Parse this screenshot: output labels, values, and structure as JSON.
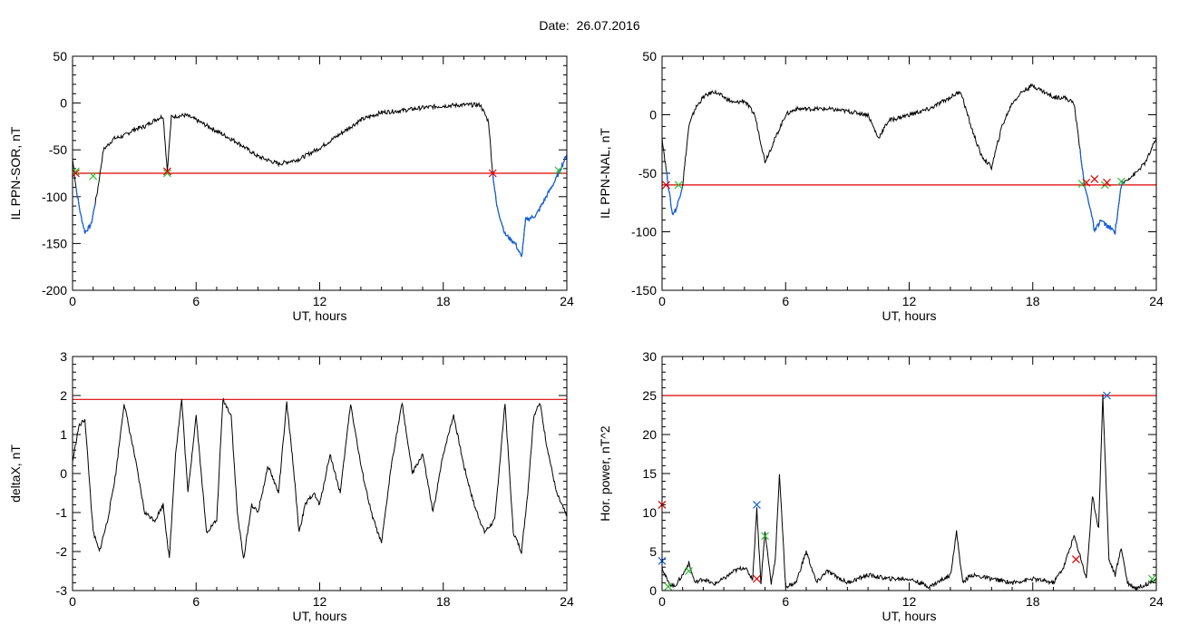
{
  "figure": {
    "title": "Date:  26.07.2016"
  },
  "colors": {
    "trace": "#000000",
    "threshold": "#e00000",
    "segment": "#1060e0",
    "marker_start": "#30c030",
    "marker_end": "#e00000",
    "marker_peak": "#1060e0"
  },
  "chart_data": [
    {
      "id": "sor",
      "type": "line",
      "ylabel": "IL PPN-SOR, nT",
      "xlabel": "UT, hours",
      "xlim": [
        0,
        24
      ],
      "ylim": [
        -200,
        50
      ],
      "xticks": [
        0,
        6,
        12,
        18,
        24
      ],
      "yticks": [
        -200,
        -150,
        -100,
        -50,
        0,
        50
      ],
      "threshold": -75,
      "series": [
        {
          "x": [
            0,
            0.2,
            0.4,
            0.6,
            0.9,
            1.2,
            1.5,
            2,
            2.5,
            3,
            3.5,
            4,
            4.4,
            4.6,
            4.8,
            5,
            5.5,
            6,
            7,
            8,
            9,
            10,
            11,
            12,
            13,
            14,
            15,
            16,
            17,
            18,
            19,
            19.8,
            20.2,
            20.4,
            20.6,
            21,
            21.5,
            21.8,
            22,
            22.5,
            23,
            23.5,
            24
          ],
          "y": [
            -60,
            -95,
            -120,
            -138,
            -130,
            -95,
            -50,
            -38,
            -35,
            -28,
            -25,
            -18,
            -14,
            -72,
            -15,
            -14,
            -13,
            -18,
            -30,
            -42,
            -57,
            -65,
            -60,
            -48,
            -33,
            -18,
            -10,
            -8,
            -5,
            -3,
            -2,
            -2,
            -20,
            -75,
            -110,
            -140,
            -150,
            -165,
            -125,
            -120,
            -100,
            -80,
            -55
          ]
        }
      ],
      "blue_segments": [
        [
          0.15,
          1.1
        ],
        [
          20.4,
          24
        ]
      ],
      "markers": [
        {
          "x": 0.15,
          "y": -73,
          "kind": "start"
        },
        {
          "x": 0.15,
          "y": -75,
          "kind": "end"
        },
        {
          "x": 1.0,
          "y": -78,
          "kind": "start"
        },
        {
          "x": 4.6,
          "y": -75,
          "kind": "start"
        },
        {
          "x": 4.6,
          "y": -73,
          "kind": "end"
        },
        {
          "x": 20.4,
          "y": -75,
          "kind": "end"
        },
        {
          "x": 23.6,
          "y": -72,
          "kind": "start"
        }
      ]
    },
    {
      "id": "nal",
      "type": "line",
      "ylabel": "IL PPN-NAL, nT",
      "xlabel": "UT, hours",
      "xlim": [
        0,
        24
      ],
      "ylim": [
        -150,
        50
      ],
      "xticks": [
        0,
        6,
        12,
        18,
        24
      ],
      "yticks": [
        -150,
        -100,
        -50,
        0,
        50
      ],
      "threshold": -60,
      "series": [
        {
          "x": [
            0,
            0.3,
            0.5,
            0.7,
            1,
            1.3,
            1.6,
            2,
            2.5,
            3,
            3.5,
            4,
            4.5,
            5,
            5.5,
            6,
            6.5,
            7,
            8,
            9,
            10,
            10.5,
            11,
            12,
            13,
            14,
            14.5,
            15,
            15.5,
            16,
            16.5,
            17,
            17.5,
            18,
            18.5,
            19,
            19.5,
            20,
            20.3,
            20.5,
            20.8,
            21,
            21.3,
            21.6,
            22,
            22.3,
            22.6,
            23,
            23.5,
            24
          ],
          "y": [
            -20,
            -60,
            -85,
            -80,
            -60,
            -10,
            5,
            15,
            20,
            15,
            10,
            12,
            0,
            -40,
            -20,
            0,
            5,
            5,
            5,
            3,
            0,
            -20,
            -5,
            0,
            5,
            15,
            20,
            -10,
            -35,
            -45,
            -10,
            10,
            20,
            25,
            20,
            15,
            15,
            10,
            -30,
            -60,
            -80,
            -100,
            -90,
            -95,
            -100,
            -60,
            -55,
            -50,
            -40,
            -20
          ]
        }
      ],
      "blue_segments": [
        [
          0.2,
          1.0
        ],
        [
          20.3,
          22.4
        ]
      ],
      "markers": [
        {
          "x": 0.2,
          "y": -60,
          "kind": "end"
        },
        {
          "x": 0.8,
          "y": -60,
          "kind": "start"
        },
        {
          "x": 20.4,
          "y": -59,
          "kind": "start"
        },
        {
          "x": 20.6,
          "y": -58,
          "kind": "end"
        },
        {
          "x": 21.0,
          "y": -55,
          "kind": "end"
        },
        {
          "x": 21.5,
          "y": -60,
          "kind": "start"
        },
        {
          "x": 21.6,
          "y": -58,
          "kind": "end"
        },
        {
          "x": 22.3,
          "y": -57,
          "kind": "start"
        }
      ]
    },
    {
      "id": "deltax",
      "type": "line",
      "ylabel": "deltaX, nT",
      "xlabel": "UT, hours",
      "xlim": [
        0,
        24
      ],
      "ylim": [
        -3,
        3
      ],
      "xticks": [
        0,
        6,
        12,
        18,
        24
      ],
      "yticks": [
        -3,
        -2,
        -1,
        0,
        1,
        2,
        3
      ],
      "threshold": 1.9,
      "series": [
        {
          "x": [
            0,
            0.3,
            0.6,
            1,
            1.3,
            1.7,
            2.1,
            2.5,
            3,
            3.5,
            4,
            4.4,
            4.7,
            5,
            5.3,
            5.6,
            6,
            6.5,
            7,
            7.3,
            7.7,
            8,
            8.3,
            8.7,
            9,
            9.5,
            10,
            10.4,
            10.7,
            11,
            11.3,
            11.7,
            12,
            12.5,
            13,
            13.5,
            14,
            14.5,
            15,
            15.5,
            16,
            16.5,
            17,
            17.5,
            18,
            18.5,
            19,
            19.5,
            20,
            20.5,
            21,
            21.4,
            21.8,
            22.1,
            22.4,
            22.7,
            23,
            23.5,
            24
          ],
          "y": [
            0.3,
            1.2,
            1.4,
            -1.5,
            -2,
            -1.2,
            0,
            1.8,
            0.5,
            -1,
            -1.2,
            -0.8,
            -2.2,
            0.5,
            1.9,
            -0.5,
            1.5,
            -1.5,
            -1.2,
            1.9,
            1.5,
            -1,
            -2.2,
            -0.8,
            -1,
            0.2,
            -0.5,
            1.8,
            0.3,
            -1.5,
            -0.8,
            -0.5,
            -0.8,
            0.5,
            -0.5,
            1.8,
            0.2,
            -1,
            -1.8,
            0.3,
            1.8,
            0,
            0.5,
            -1,
            0.5,
            1.5,
            0.2,
            -0.8,
            -1.5,
            -1.2,
            1.8,
            -1.5,
            -2,
            -0.5,
            1.5,
            1.8,
            0.8,
            -0.5,
            -1.1
          ]
        }
      ],
      "blue_segments": [],
      "markers": []
    },
    {
      "id": "power",
      "type": "line",
      "ylabel": "Hor. power, nT^2",
      "xlabel": "UT, hours",
      "xlim": [
        0,
        24
      ],
      "ylim": [
        0,
        30
      ],
      "xticks": [
        0,
        6,
        12,
        18,
        24
      ],
      "yticks": [
        0,
        5,
        10,
        15,
        20,
        25,
        30
      ],
      "threshold": 25,
      "series": [
        {
          "x": [
            0,
            0.3,
            0.6,
            1,
            1.3,
            1.6,
            2,
            2.5,
            3,
            3.5,
            4,
            4.4,
            4.6,
            4.8,
            5,
            5.3,
            5.5,
            5.7,
            6,
            6.5,
            7,
            7.5,
            8,
            9,
            10,
            11,
            12,
            13,
            14,
            14.3,
            14.6,
            15,
            16,
            17,
            18,
            19,
            19.5,
            20,
            20.3,
            20.6,
            20.9,
            21.2,
            21.4,
            21.7,
            22,
            22.3,
            22.6,
            23,
            23.5,
            24
          ],
          "y": [
            3,
            1,
            0.5,
            2,
            3.5,
            1,
            1.5,
            0.8,
            1.5,
            2.5,
            3,
            1.5,
            10.5,
            1,
            7.5,
            1,
            4,
            15,
            0.5,
            1,
            5,
            1,
            2.5,
            1,
            2,
            1.5,
            1.5,
            0.5,
            2,
            7.5,
            1,
            2,
            1.5,
            1,
            1.5,
            1,
            3,
            7,
            4.5,
            1.5,
            12,
            8,
            25,
            4,
            2,
            5.5,
            1,
            0.3,
            0.8,
            1.5
          ]
        }
      ],
      "blue_segments": [],
      "markers": [
        {
          "x": 0,
          "y": 11,
          "kind": "end"
        },
        {
          "x": 0,
          "y": 3.8,
          "kind": "peak"
        },
        {
          "x": 0.3,
          "y": 0.5,
          "kind": "start"
        },
        {
          "x": 1.3,
          "y": 2.5,
          "kind": "start"
        },
        {
          "x": 4.6,
          "y": 11,
          "kind": "peak"
        },
        {
          "x": 4.6,
          "y": 1.5,
          "kind": "end"
        },
        {
          "x": 5,
          "y": 7,
          "kind": "start"
        },
        {
          "x": 20.1,
          "y": 4,
          "kind": "end"
        },
        {
          "x": 21.6,
          "y": 25,
          "kind": "peak"
        },
        {
          "x": 23.8,
          "y": 1.5,
          "kind": "start"
        }
      ]
    }
  ]
}
